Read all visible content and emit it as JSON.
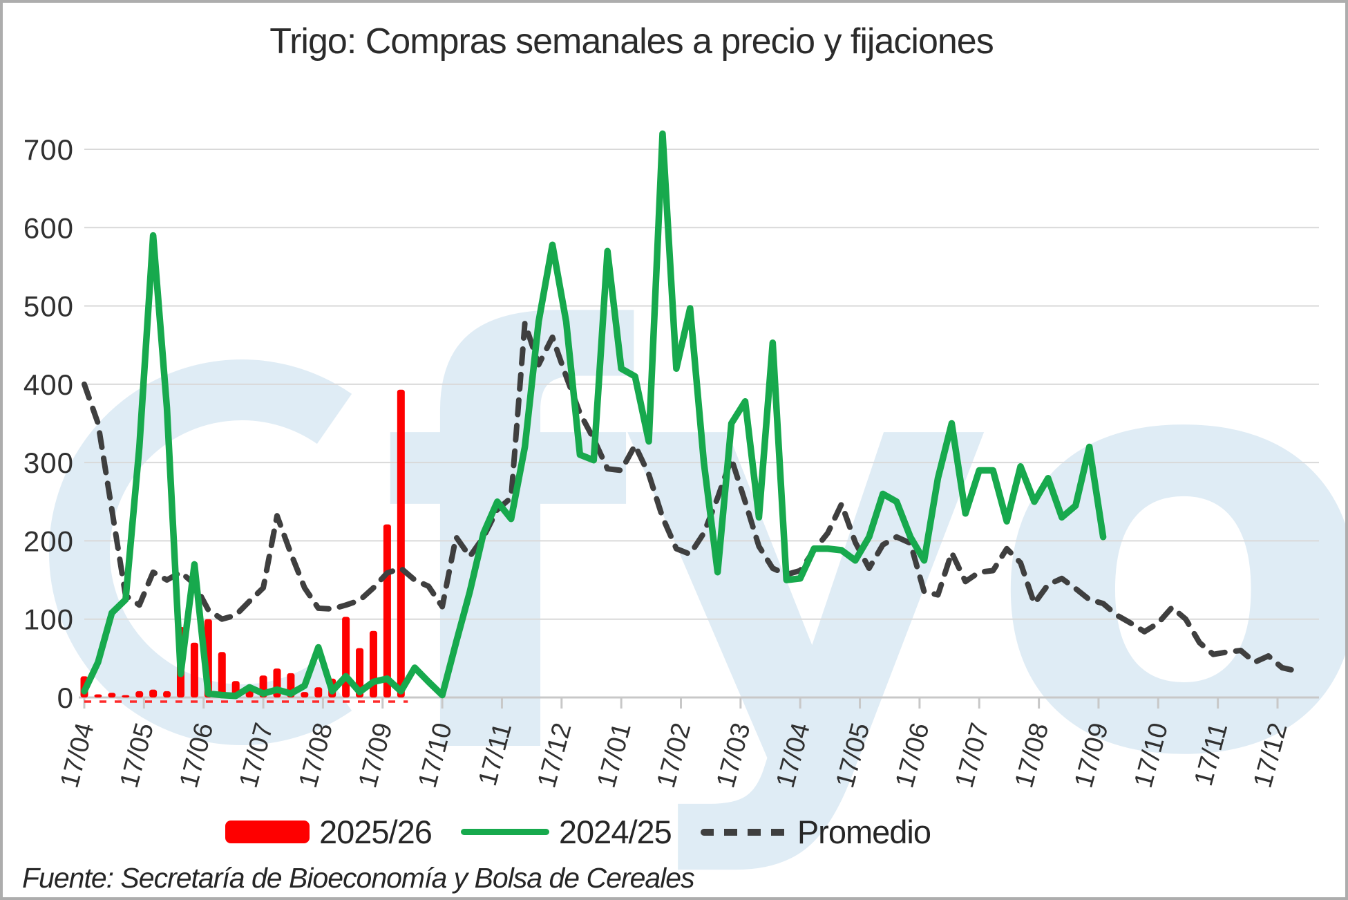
{
  "title": "Trigo: Compras semanales a precio y fijaciones",
  "source": "Fuente: Secretaría de Bioeconomía y Bolsa de Cereales",
  "watermark_text": "fyo",
  "colors": {
    "bars_2025_26": "#fe0000",
    "line_2024_25": "#17a94d",
    "promedio": "#3f3f3f",
    "gridline": "#d9d9d9",
    "axis_line": "#c8c8c8",
    "tick_text": "#303030",
    "watermark": "#dfecf5",
    "zero_dash_red": "#fe2a2a",
    "frame_border": "#adadad"
  },
  "legend": {
    "items": [
      {
        "label": "2025/26",
        "swatch": "bar-swatch"
      },
      {
        "label": "2024/25",
        "swatch": "line-swatch"
      },
      {
        "label": "Promedio",
        "swatch": "dashed-swatch"
      }
    ]
  },
  "chart_data": {
    "type": "combo (bar + line + dashed line)",
    "title": "Trigo: Compras semanales a precio y fijaciones",
    "x_axis": {
      "unit": "weeks, labeled monthly (day 17 of each month)",
      "tick_labels": [
        "17/04",
        "17/05",
        "17/06",
        "17/07",
        "17/08",
        "17/09",
        "17/10",
        "17/11",
        "17/12",
        "17/01",
        "17/02",
        "17/03",
        "17/04",
        "17/05",
        "17/06",
        "17/07",
        "17/08",
        "17/09",
        "17/10",
        "17/11",
        "17/12"
      ],
      "weeks_per_month": 4.3333
    },
    "y_axis": {
      "min": 0,
      "max": 700,
      "step": 100,
      "tick_labels": [
        "0",
        "100",
        "200",
        "300",
        "400",
        "500",
        "600",
        "700"
      ],
      "grid": true
    },
    "series": [
      {
        "name": "2025/26",
        "type": "bar",
        "color": "#fe0000",
        "start_week": 0,
        "values": [
          27,
          4,
          6,
          3,
          8,
          10,
          8,
          90,
          70,
          100,
          58,
          21,
          9,
          28,
          37,
          31,
          7,
          13,
          24,
          103,
          63,
          85,
          221,
          393
        ],
        "zero_baseline_dashed_through_week": 23.5
      },
      {
        "name": "2024/25",
        "type": "line",
        "color": "#17a94d",
        "start_week": 0,
        "values": [
          8,
          45,
          108,
          125,
          320,
          590,
          370,
          30,
          170,
          5,
          3,
          2,
          13,
          5,
          10,
          5,
          15,
          64,
          8,
          27,
          7,
          20,
          24,
          8,
          38,
          20,
          3,
          70,
          135,
          210,
          250,
          228,
          320,
          480,
          578,
          480,
          310,
          303,
          570,
          420,
          410,
          327,
          720,
          420,
          497,
          300,
          160,
          350,
          378,
          230,
          453,
          150,
          152,
          190,
          190,
          188,
          175,
          205,
          260,
          250,
          205,
          175,
          280,
          350,
          235,
          290,
          290,
          225,
          295,
          250,
          280,
          230,
          245,
          320,
          205
        ]
      },
      {
        "name": "Promedio",
        "type": "dashed-line",
        "color": "#3f3f3f",
        "start_week": 0,
        "values": [
          400,
          350,
          240,
          130,
          118,
          160,
          150,
          160,
          145,
          112,
          100,
          105,
          123,
          140,
          232,
          184,
          140,
          114,
          113,
          118,
          124,
          140,
          159,
          165,
          150,
          142,
          116,
          205,
          180,
          205,
          240,
          255,
          478,
          425,
          460,
          410,
          363,
          330,
          292,
          290,
          322,
          285,
          230,
          190,
          183,
          210,
          255,
          305,
          250,
          193,
          165,
          157,
          162,
          188,
          210,
          247,
          198,
          165,
          195,
          205,
          197,
          135,
          131,
          185,
          148,
          160,
          162,
          190,
          172,
          120,
          144,
          152,
          139,
          125,
          120,
          105,
          95,
          84,
          95,
          115,
          100,
          70,
          55,
          58,
          60,
          45,
          53,
          38,
          34
        ]
      }
    ],
    "legend_position": "bottom",
    "notes": "Light blue 'fyo' logo watermark behind plot"
  }
}
